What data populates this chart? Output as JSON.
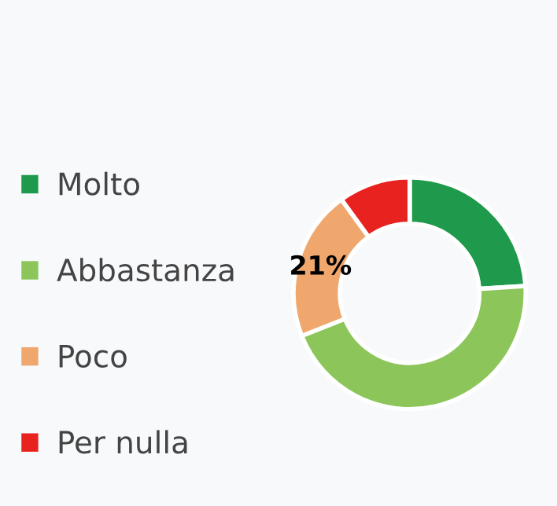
{
  "chart_data": {
    "type": "donut",
    "categories": [
      "Molto",
      "Abbastanza",
      "Poco",
      "Per nulla"
    ],
    "values": [
      24,
      45,
      21,
      10
    ],
    "colors": [
      "#1f9a4c",
      "#8cc65a",
      "#f0a76e",
      "#e8221f"
    ],
    "value_labels": [
      null,
      null,
      "21%",
      null
    ],
    "legend": "left"
  }
}
